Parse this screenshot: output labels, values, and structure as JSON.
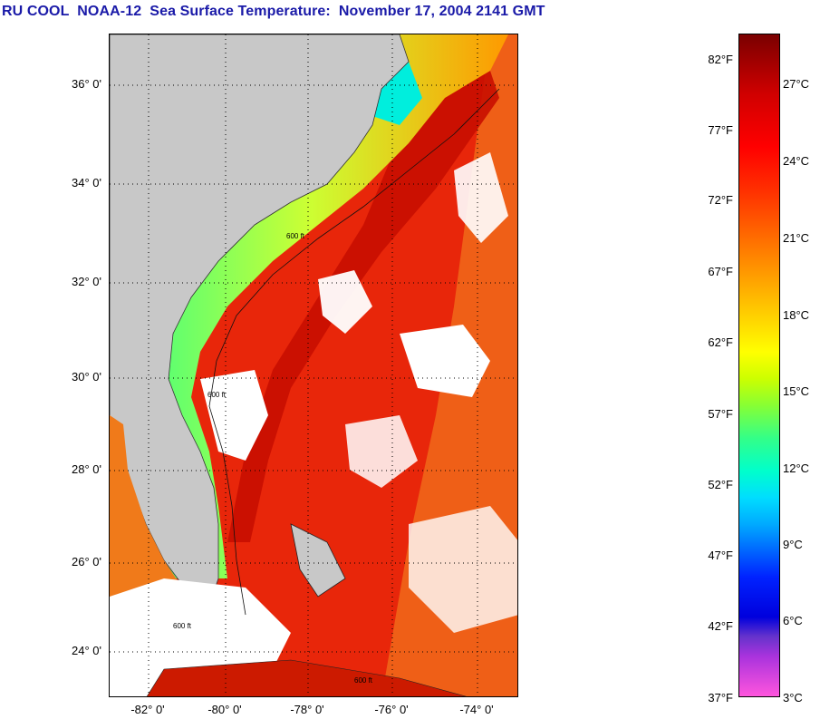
{
  "title": "RU COOL  NOAA-12  Sea Surface Temperature:  November 17, 2004 2141 GMT",
  "map": {
    "latitude_labels": [
      "36° 0'",
      "34° 0'",
      "32° 0'",
      "30° 0'",
      "28° 0'",
      "26° 0'",
      "24° 0'"
    ],
    "longitude_labels": [
      "-82° 0'",
      "-80° 0'",
      "-78° 0'",
      "-76° 0'",
      "-74° 0'"
    ],
    "contour_labels": [
      "600 ft",
      "600 ft",
      "600 ft",
      "600 ft"
    ],
    "colors": {
      "land": "#c8c8c8",
      "cloud": "#ffffff",
      "warm_water": "#ee2200",
      "cool_water": "#00ffdd"
    }
  },
  "colorbar": {
    "fahrenheit_labels": [
      "82°F",
      "77°F",
      "72°F",
      "67°F",
      "62°F",
      "57°F",
      "52°F",
      "47°F",
      "42°F",
      "37°F"
    ],
    "celsius_labels": [
      "27°C",
      "24°C",
      "21°C",
      "18°C",
      "15°C",
      "12°C",
      "9°C",
      "6°C",
      "3°C"
    ]
  }
}
